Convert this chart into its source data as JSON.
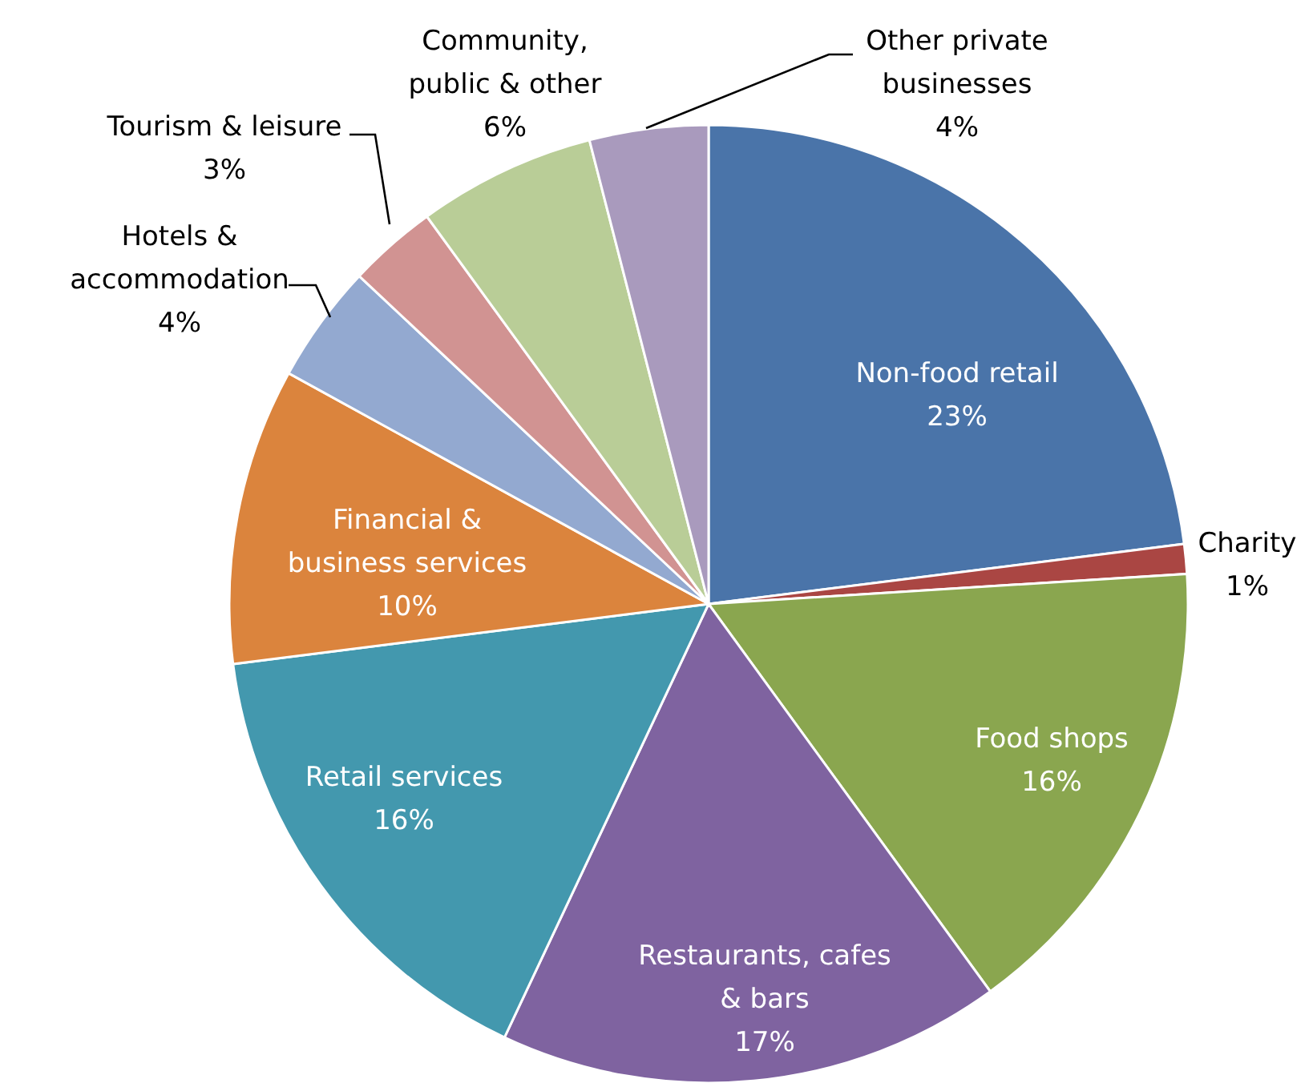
{
  "chart_data": {
    "type": "pie",
    "categories": [
      "Non-food retail",
      "Charity",
      "Food shops",
      "Restaurants, cafes & bars",
      "Retail services",
      "Financial & business services",
      "Hotels & accommodation",
      "Tourism & leisure",
      "Community, public & other",
      "Other private businesses"
    ],
    "values": [
      23,
      1,
      16,
      17,
      16,
      10,
      4,
      3,
      6,
      4
    ],
    "colors": [
      "#4a74a9",
      "#aa4643",
      "#8aa64f",
      "#7f63a0",
      "#4398ae",
      "#db843d",
      "#93a9d0",
      "#d19392",
      "#b9cd97",
      "#a99abd"
    ],
    "value_labels": [
      "23%",
      "1%",
      "16%",
      "17%",
      "16%",
      "10%",
      "4%",
      "3%",
      "6%",
      "4%"
    ],
    "legend": false
  }
}
